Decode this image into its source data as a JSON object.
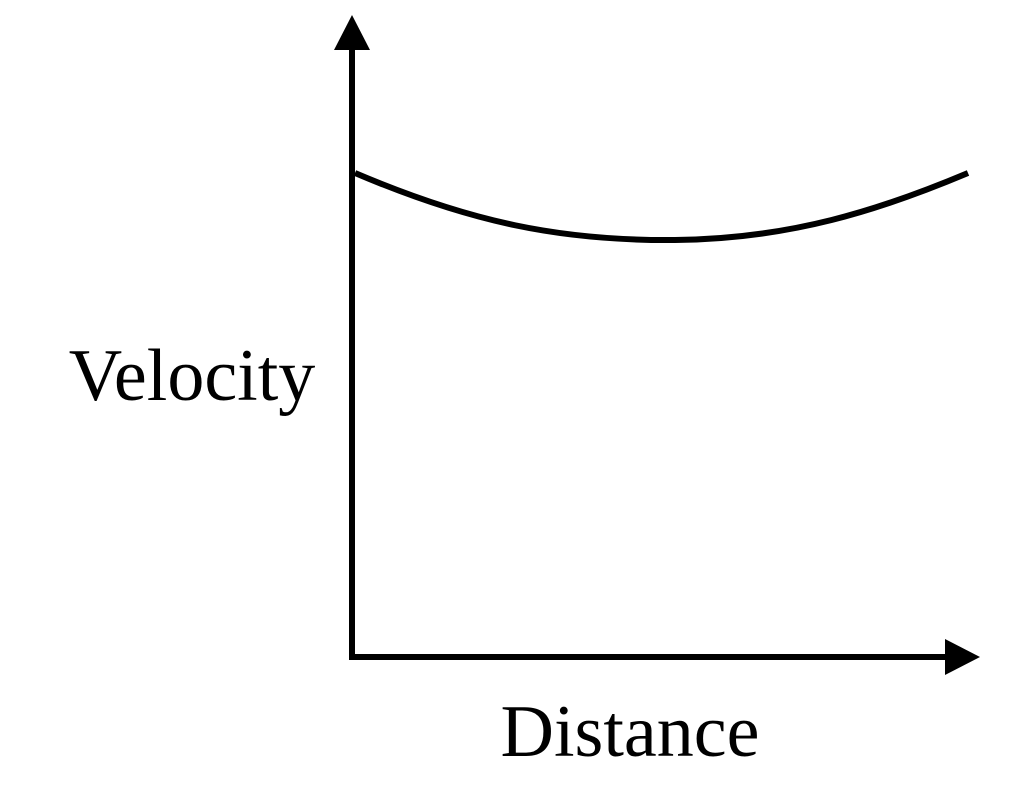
{
  "axes": {
    "y_label": "Velocity",
    "x_label": "Distance"
  }
}
